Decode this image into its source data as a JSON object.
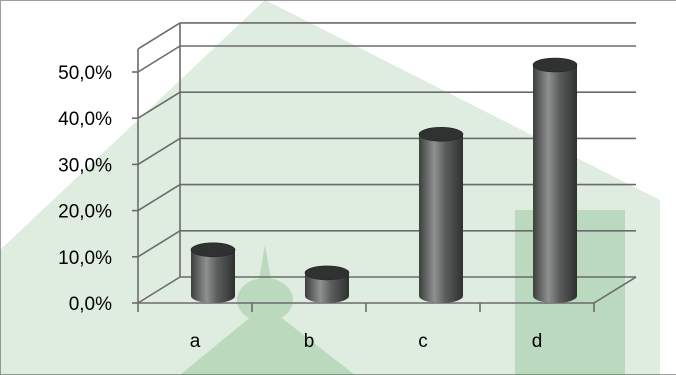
{
  "chart_data": {
    "type": "bar",
    "style": "3d-cylinder",
    "categories": [
      "a",
      "b",
      "c",
      "d"
    ],
    "values": [
      10.0,
      5.0,
      35.0,
      50.0
    ],
    "y_tick_labels": [
      "0,0%",
      "10,0%",
      "20,0%",
      "30,0%",
      "40,0%",
      "50,0%"
    ],
    "ylim": [
      0,
      55
    ],
    "y_unit": "%",
    "title": "",
    "xlabel": "",
    "ylabel": "",
    "grid": true,
    "legend": "none",
    "colors": {
      "bar_body": "#4a4d4c",
      "bar_light": "#9a9d9c",
      "bar_top": "#2f3231",
      "grid": "#6b6b6b",
      "watermark": "#5aa562"
    }
  }
}
